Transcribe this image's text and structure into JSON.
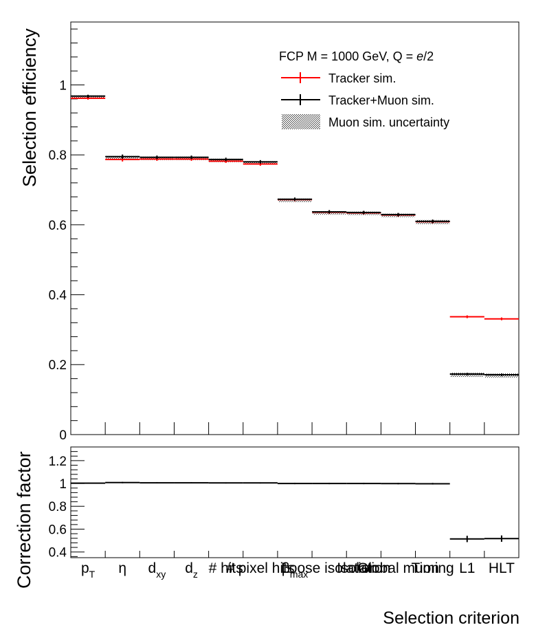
{
  "chart_data": [
    {
      "type": "step",
      "panel": "main",
      "ylabel": "Selection efficiency",
      "ylim": [
        0,
        1.18
      ],
      "yticks": [
        "0",
        "0.2",
        "0.4",
        "0.6",
        "0.8",
        "1"
      ],
      "categories": [
        "pT",
        "η",
        "dxy",
        "dz",
        "# hits",
        "# pixel hits",
        "βmax",
        "Loose isolation",
        "Isolation",
        "Global muon",
        "Timing",
        "L1",
        "HLT"
      ],
      "legend": {
        "title": "FCP M = 1000 GeV, Q = e/2",
        "title_parts": [
          "FCP M = 1000 GeV, Q = ",
          "e",
          "/2"
        ],
        "entries": [
          {
            "label": "Tracker sim.",
            "color": "#ff0000",
            "style": "line-errorbar"
          },
          {
            "label": "Tracker+Muon sim.",
            "color": "#000000",
            "style": "line-errorbar"
          },
          {
            "label": "Muon sim. uncertainty",
            "color": "#555555",
            "style": "hatched-band"
          }
        ]
      },
      "series": [
        {
          "name": "Tracker sim.",
          "color": "#ff0000",
          "values": [
            0.962,
            0.787,
            0.788,
            0.788,
            0.782,
            0.774,
            0.672,
            0.636,
            0.634,
            0.628,
            0.609,
            0.337,
            0.331
          ]
        },
        {
          "name": "Tracker+Muon sim.",
          "color": "#000000",
          "values": [
            0.968,
            0.795,
            0.793,
            0.793,
            0.787,
            0.78,
            0.673,
            0.637,
            0.635,
            0.629,
            0.61,
            0.173,
            0.171
          ]
        }
      ],
      "errors": [
        0.004,
        0.006,
        0.005,
        0.005,
        0.005,
        0.005,
        0.005,
        0.005,
        0.005,
        0.005,
        0.005,
        0.004,
        0.004
      ],
      "band_halfwidth": [
        0.002,
        0.002,
        0.002,
        0.002,
        0.002,
        0.002,
        0.002,
        0.002,
        0.003,
        0.003,
        0.004,
        0.004,
        0.004
      ]
    },
    {
      "type": "step",
      "panel": "ratio",
      "ylabel": "Correction factor",
      "xlabel": "Selection criterion",
      "ylim": [
        0.35,
        1.32
      ],
      "yticks": [
        "0.4",
        "0.6",
        "0.8",
        "1",
        "1.2"
      ],
      "values": [
        1.003,
        1.008,
        1.006,
        1.006,
        1.005,
        1.005,
        1.0,
        1.0,
        1.0,
        0.999,
        0.998,
        0.514,
        0.517
      ],
      "errors": [
        0.004,
        0.006,
        0.005,
        0.005,
        0.005,
        0.005,
        0.006,
        0.006,
        0.006,
        0.006,
        0.007,
        0.028,
        0.028
      ]
    }
  ],
  "x_tick_labels": [
    {
      "main": "p",
      "sub": "T"
    },
    {
      "main": "η",
      "sub": ""
    },
    {
      "main": "d",
      "sub": "xy"
    },
    {
      "main": "d",
      "sub": "z"
    },
    {
      "main": "# hits",
      "sub": ""
    },
    {
      "main": "# pixel hits",
      "sub": ""
    },
    {
      "main": "β",
      "sub": "max"
    },
    {
      "main": "Loose isolation",
      "sub": ""
    },
    {
      "main": "Isolation",
      "sub": ""
    },
    {
      "main": "Global muon",
      "sub": ""
    },
    {
      "main": "Timing",
      "sub": ""
    },
    {
      "main": "L1",
      "sub": ""
    },
    {
      "main": "HLT",
      "sub": ""
    }
  ]
}
